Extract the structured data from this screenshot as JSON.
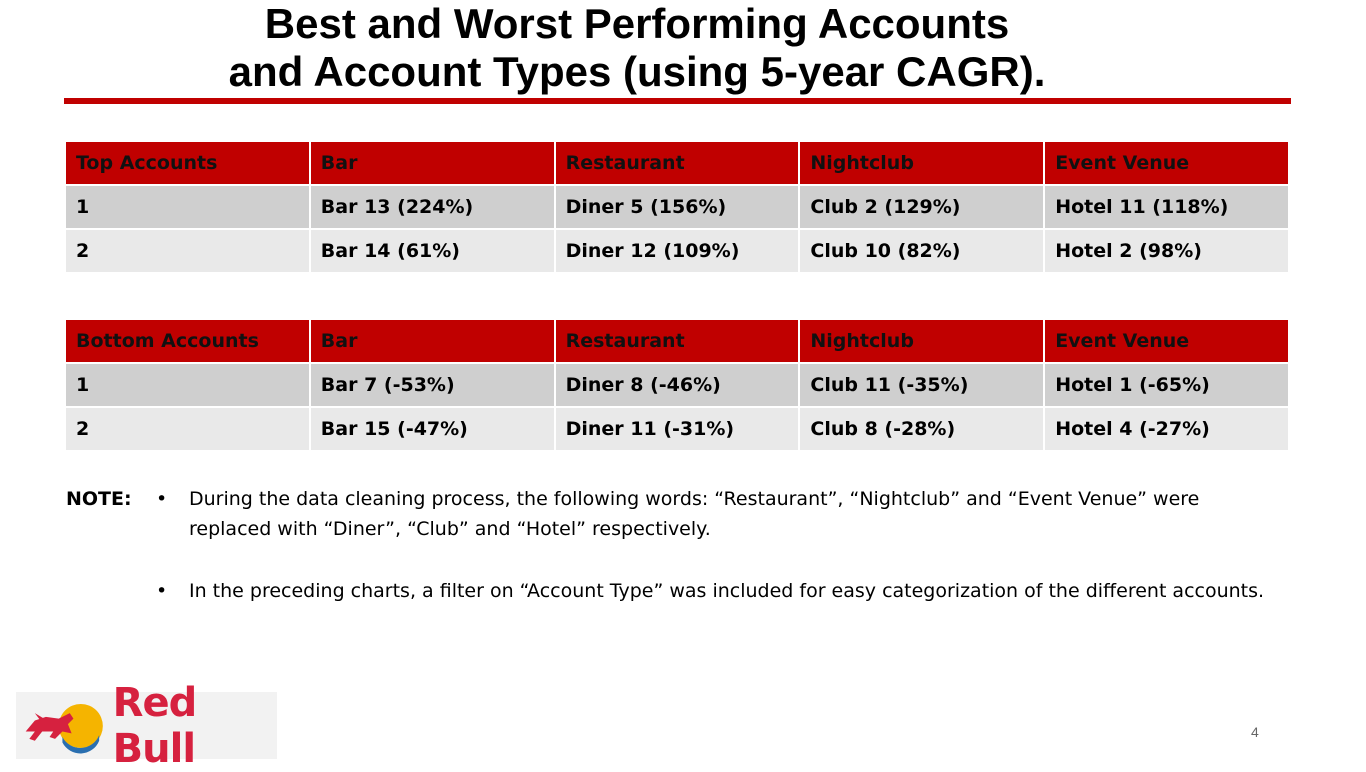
{
  "slide": {
    "title_line1": "Best and Worst Performing Accounts",
    "title_line2": "and Account Types (using 5-year CAGR).",
    "page_number": "4"
  },
  "top_table": {
    "headers": [
      "Top Accounts",
      "Bar",
      "Restaurant",
      "Nightclub",
      "Event Venue"
    ],
    "rows": [
      [
        "1",
        "Bar  13 (224%)",
        "Diner 5 (156%)",
        "Club 2 (129%)",
        "Hotel 11 (118%)"
      ],
      [
        "2",
        "Bar 14 (61%)",
        "Diner 12 (109%)",
        "Club 10 (82%)",
        "Hotel 2 (98%)"
      ]
    ]
  },
  "bottom_table": {
    "headers": [
      "Bottom Accounts",
      "Bar",
      "Restaurant",
      "Nightclub",
      "Event Venue"
    ],
    "rows": [
      [
        "1",
        "Bar  7 (-53%)",
        "Diner 8 (-46%)",
        "Club 11 (-35%)",
        "Hotel 1 (-65%)"
      ],
      [
        "2",
        "Bar 15 (-47%)",
        "Diner 11 (-31%)",
        "Club 8 (-28%)",
        "Hotel 4 (-27%)"
      ]
    ]
  },
  "note": {
    "label": "NOTE:",
    "bullets": [
      "During the data cleaning process, the following words: “Restaurant”, “Nightclub” and “Event Venue” were replaced with “Diner”, “Club” and “Hotel” respectively.",
      "In the preceding charts, a filter on “Account Type” was included for easy categorization of the different accounts."
    ],
    "bullet_glyph": "•"
  },
  "logo": {
    "text": "Red Bull",
    "icon": "red-bull-logo-icon"
  },
  "colors": {
    "accent_red": "#c00000",
    "row_odd": "#cfcfcf",
    "row_even": "#e9e9e9",
    "logo_red": "#d6213f"
  }
}
